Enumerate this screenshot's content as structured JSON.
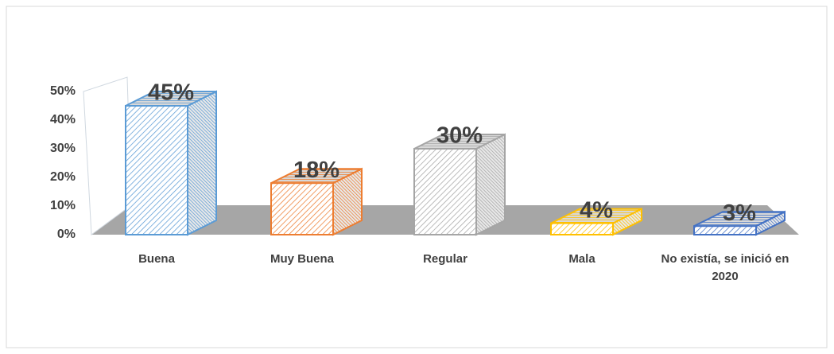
{
  "chart_data": {
    "type": "bar3d",
    "categories": [
      "Buena",
      "Muy Buena",
      "Regular",
      "Mala",
      "No existía, se inició en 2020"
    ],
    "values": [
      45,
      18,
      30,
      4,
      3
    ],
    "value_labels": [
      "45%",
      "18%",
      "30%",
      "4%",
      "3%"
    ],
    "colors": [
      "#5b9bd5",
      "#ed7d31",
      "#a5a5a5",
      "#ffc000",
      "#4472c4"
    ],
    "ylim": [
      0,
      50
    ],
    "yticks": [
      {
        "value": 0,
        "label": "0%"
      },
      {
        "value": 10,
        "label": "10%"
      },
      {
        "value": 20,
        "label": "20%"
      },
      {
        "value": 30,
        "label": "30%"
      },
      {
        "value": 40,
        "label": "40%"
      },
      {
        "value": 50,
        "label": "50%"
      }
    ],
    "grid": false
  }
}
